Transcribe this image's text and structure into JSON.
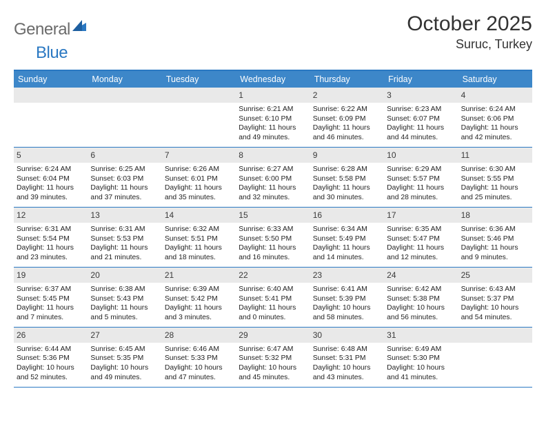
{
  "brand": {
    "general": "General",
    "blue": "Blue",
    "accent": "#2a78c2"
  },
  "title": "October 2025",
  "location": "Suruc, Turkey",
  "header_bg": "#3d87c9",
  "daynum_bg": "#e9e9e9",
  "border_color": "#2a78c2",
  "weekdays": [
    "Sunday",
    "Monday",
    "Tuesday",
    "Wednesday",
    "Thursday",
    "Friday",
    "Saturday"
  ],
  "weeks": [
    [
      {
        "n": "",
        "sr": "",
        "ss": "",
        "d1": "",
        "d2": ""
      },
      {
        "n": "",
        "sr": "",
        "ss": "",
        "d1": "",
        "d2": ""
      },
      {
        "n": "",
        "sr": "",
        "ss": "",
        "d1": "",
        "d2": ""
      },
      {
        "n": "1",
        "sr": "Sunrise: 6:21 AM",
        "ss": "Sunset: 6:10 PM",
        "d1": "Daylight: 11 hours",
        "d2": "and 49 minutes."
      },
      {
        "n": "2",
        "sr": "Sunrise: 6:22 AM",
        "ss": "Sunset: 6:09 PM",
        "d1": "Daylight: 11 hours",
        "d2": "and 46 minutes."
      },
      {
        "n": "3",
        "sr": "Sunrise: 6:23 AM",
        "ss": "Sunset: 6:07 PM",
        "d1": "Daylight: 11 hours",
        "d2": "and 44 minutes."
      },
      {
        "n": "4",
        "sr": "Sunrise: 6:24 AM",
        "ss": "Sunset: 6:06 PM",
        "d1": "Daylight: 11 hours",
        "d2": "and 42 minutes."
      }
    ],
    [
      {
        "n": "5",
        "sr": "Sunrise: 6:24 AM",
        "ss": "Sunset: 6:04 PM",
        "d1": "Daylight: 11 hours",
        "d2": "and 39 minutes."
      },
      {
        "n": "6",
        "sr": "Sunrise: 6:25 AM",
        "ss": "Sunset: 6:03 PM",
        "d1": "Daylight: 11 hours",
        "d2": "and 37 minutes."
      },
      {
        "n": "7",
        "sr": "Sunrise: 6:26 AM",
        "ss": "Sunset: 6:01 PM",
        "d1": "Daylight: 11 hours",
        "d2": "and 35 minutes."
      },
      {
        "n": "8",
        "sr": "Sunrise: 6:27 AM",
        "ss": "Sunset: 6:00 PM",
        "d1": "Daylight: 11 hours",
        "d2": "and 32 minutes."
      },
      {
        "n": "9",
        "sr": "Sunrise: 6:28 AM",
        "ss": "Sunset: 5:58 PM",
        "d1": "Daylight: 11 hours",
        "d2": "and 30 minutes."
      },
      {
        "n": "10",
        "sr": "Sunrise: 6:29 AM",
        "ss": "Sunset: 5:57 PM",
        "d1": "Daylight: 11 hours",
        "d2": "and 28 minutes."
      },
      {
        "n": "11",
        "sr": "Sunrise: 6:30 AM",
        "ss": "Sunset: 5:55 PM",
        "d1": "Daylight: 11 hours",
        "d2": "and 25 minutes."
      }
    ],
    [
      {
        "n": "12",
        "sr": "Sunrise: 6:31 AM",
        "ss": "Sunset: 5:54 PM",
        "d1": "Daylight: 11 hours",
        "d2": "and 23 minutes."
      },
      {
        "n": "13",
        "sr": "Sunrise: 6:31 AM",
        "ss": "Sunset: 5:53 PM",
        "d1": "Daylight: 11 hours",
        "d2": "and 21 minutes."
      },
      {
        "n": "14",
        "sr": "Sunrise: 6:32 AM",
        "ss": "Sunset: 5:51 PM",
        "d1": "Daylight: 11 hours",
        "d2": "and 18 minutes."
      },
      {
        "n": "15",
        "sr": "Sunrise: 6:33 AM",
        "ss": "Sunset: 5:50 PM",
        "d1": "Daylight: 11 hours",
        "d2": "and 16 minutes."
      },
      {
        "n": "16",
        "sr": "Sunrise: 6:34 AM",
        "ss": "Sunset: 5:49 PM",
        "d1": "Daylight: 11 hours",
        "d2": "and 14 minutes."
      },
      {
        "n": "17",
        "sr": "Sunrise: 6:35 AM",
        "ss": "Sunset: 5:47 PM",
        "d1": "Daylight: 11 hours",
        "d2": "and 12 minutes."
      },
      {
        "n": "18",
        "sr": "Sunrise: 6:36 AM",
        "ss": "Sunset: 5:46 PM",
        "d1": "Daylight: 11 hours",
        "d2": "and 9 minutes."
      }
    ],
    [
      {
        "n": "19",
        "sr": "Sunrise: 6:37 AM",
        "ss": "Sunset: 5:45 PM",
        "d1": "Daylight: 11 hours",
        "d2": "and 7 minutes."
      },
      {
        "n": "20",
        "sr": "Sunrise: 6:38 AM",
        "ss": "Sunset: 5:43 PM",
        "d1": "Daylight: 11 hours",
        "d2": "and 5 minutes."
      },
      {
        "n": "21",
        "sr": "Sunrise: 6:39 AM",
        "ss": "Sunset: 5:42 PM",
        "d1": "Daylight: 11 hours",
        "d2": "and 3 minutes."
      },
      {
        "n": "22",
        "sr": "Sunrise: 6:40 AM",
        "ss": "Sunset: 5:41 PM",
        "d1": "Daylight: 11 hours",
        "d2": "and 0 minutes."
      },
      {
        "n": "23",
        "sr": "Sunrise: 6:41 AM",
        "ss": "Sunset: 5:39 PM",
        "d1": "Daylight: 10 hours",
        "d2": "and 58 minutes."
      },
      {
        "n": "24",
        "sr": "Sunrise: 6:42 AM",
        "ss": "Sunset: 5:38 PM",
        "d1": "Daylight: 10 hours",
        "d2": "and 56 minutes."
      },
      {
        "n": "25",
        "sr": "Sunrise: 6:43 AM",
        "ss": "Sunset: 5:37 PM",
        "d1": "Daylight: 10 hours",
        "d2": "and 54 minutes."
      }
    ],
    [
      {
        "n": "26",
        "sr": "Sunrise: 6:44 AM",
        "ss": "Sunset: 5:36 PM",
        "d1": "Daylight: 10 hours",
        "d2": "and 52 minutes."
      },
      {
        "n": "27",
        "sr": "Sunrise: 6:45 AM",
        "ss": "Sunset: 5:35 PM",
        "d1": "Daylight: 10 hours",
        "d2": "and 49 minutes."
      },
      {
        "n": "28",
        "sr": "Sunrise: 6:46 AM",
        "ss": "Sunset: 5:33 PM",
        "d1": "Daylight: 10 hours",
        "d2": "and 47 minutes."
      },
      {
        "n": "29",
        "sr": "Sunrise: 6:47 AM",
        "ss": "Sunset: 5:32 PM",
        "d1": "Daylight: 10 hours",
        "d2": "and 45 minutes."
      },
      {
        "n": "30",
        "sr": "Sunrise: 6:48 AM",
        "ss": "Sunset: 5:31 PM",
        "d1": "Daylight: 10 hours",
        "d2": "and 43 minutes."
      },
      {
        "n": "31",
        "sr": "Sunrise: 6:49 AM",
        "ss": "Sunset: 5:30 PM",
        "d1": "Daylight: 10 hours",
        "d2": "and 41 minutes."
      },
      {
        "n": "",
        "sr": "",
        "ss": "",
        "d1": "",
        "d2": ""
      }
    ]
  ]
}
